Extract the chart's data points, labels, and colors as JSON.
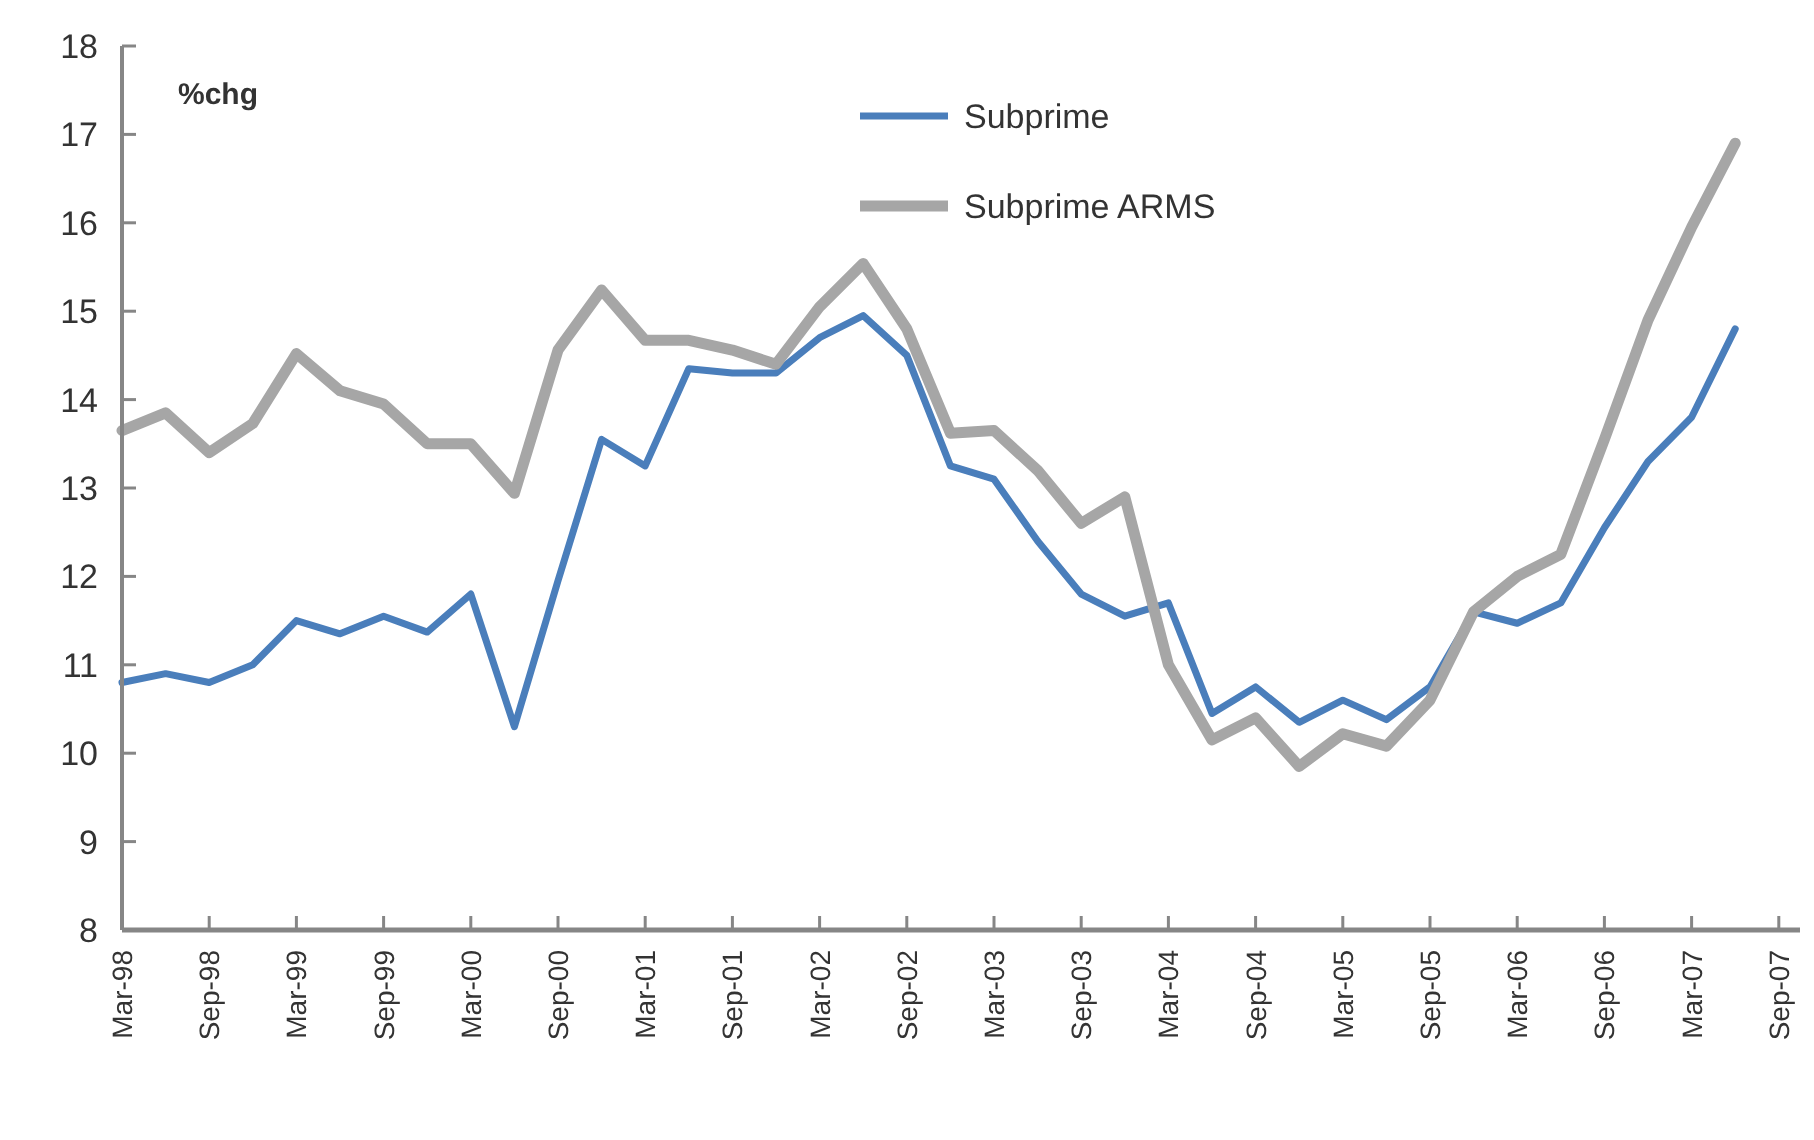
{
  "chart_data": {
    "type": "line",
    "ylabel": "%chg",
    "categories": [
      "Mar-98",
      null,
      "Sep-98",
      null,
      "Mar-99",
      null,
      "Sep-99",
      null,
      "Mar-00",
      null,
      "Sep-00",
      null,
      "Mar-01",
      null,
      "Sep-01",
      null,
      "Mar-02",
      null,
      "Sep-02",
      null,
      "Mar-03",
      null,
      "Sep-03",
      null,
      "Mar-04",
      null,
      "Sep-04",
      null,
      "Mar-05",
      null,
      "Sep-05",
      null,
      "Mar-06",
      null,
      "Sep-06",
      null,
      "Mar-07",
      null,
      "Sep-07"
    ],
    "series": [
      {
        "name": "Subprime",
        "color": "#4a7ebb",
        "values": [
          10.8,
          10.9,
          10.8,
          11.0,
          11.5,
          11.35,
          11.55,
          11.37,
          11.8,
          10.3,
          11.95,
          13.55,
          13.25,
          14.35,
          14.3,
          14.3,
          14.7,
          14.95,
          14.5,
          13.25,
          13.1,
          12.4,
          11.8,
          11.55,
          11.7,
          10.45,
          10.75,
          10.35,
          10.6,
          10.38,
          10.75,
          11.6,
          11.47,
          11.7,
          12.55,
          13.3,
          13.8,
          14.8,
          null
        ]
      },
      {
        "name": "Subprime ARMS",
        "color": "#a6a6a6",
        "values": [
          13.65,
          13.85,
          13.4,
          13.73,
          14.52,
          14.1,
          13.95,
          13.5,
          13.5,
          12.94,
          14.56,
          15.24,
          14.67,
          14.67,
          14.56,
          14.4,
          15.05,
          15.54,
          14.8,
          13.62,
          13.65,
          13.2,
          12.6,
          12.9,
          11.0,
          10.15,
          10.4,
          9.85,
          10.22,
          10.08,
          10.6,
          11.6,
          12.0,
          12.25,
          13.55,
          14.9,
          15.95,
          16.9,
          null
        ]
      }
    ],
    "ylim": [
      8,
      18
    ],
    "yticks": [
      8,
      9,
      10,
      11,
      12,
      13,
      14,
      15,
      16,
      17,
      18
    ],
    "grid": false,
    "legend": "top",
    "line_style": "solid"
  }
}
